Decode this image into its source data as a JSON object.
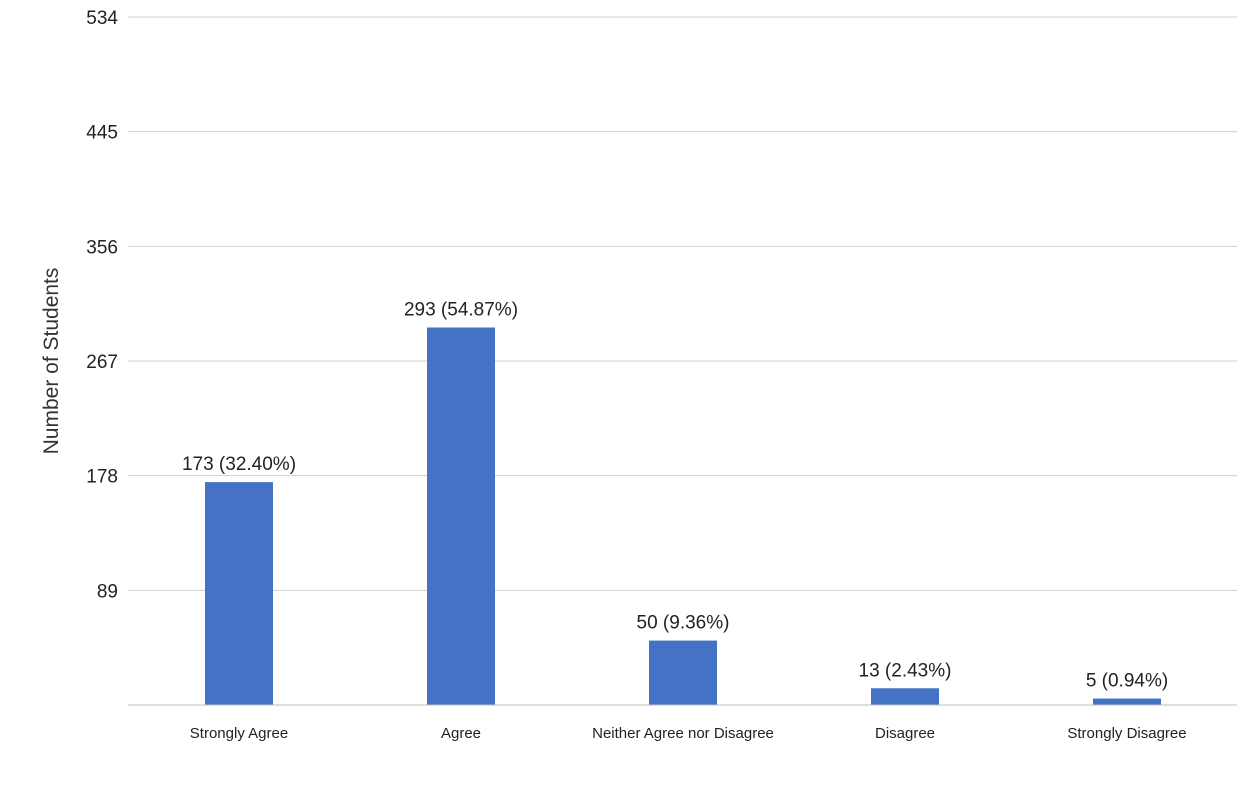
{
  "chart_data": {
    "type": "bar",
    "ylabel": "Number of Students",
    "ylim": [
      0,
      534
    ],
    "yticks": [
      "534",
      "445",
      "356",
      "267",
      "178",
      "89"
    ],
    "grid": true,
    "categories": [
      "Strongly Agree",
      "Agree",
      "Neither Agree nor Disagree",
      "Disagree",
      "Strongly Disagree"
    ],
    "values": [
      173,
      293,
      50,
      13,
      5
    ],
    "data_labels": [
      "173 (32.40%)",
      "293 (54.87%)",
      "50 (9.36%)",
      "13 (2.43%)",
      "5 (0.94%)"
    ],
    "bar_color": "#4472c4"
  }
}
